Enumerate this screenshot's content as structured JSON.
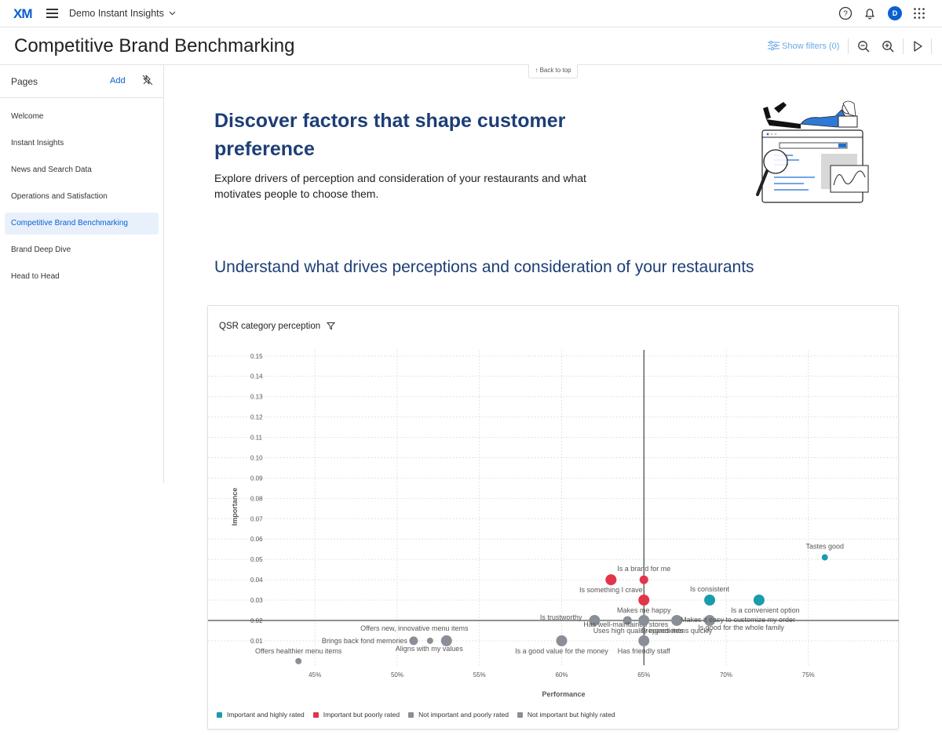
{
  "topbar": {
    "logo": "XM",
    "project": "Demo Instant Insights",
    "avatar_initial": "D"
  },
  "titlebar": {
    "title": "Competitive Brand Benchmarking",
    "show_filters": "Show filters (0)"
  },
  "sidebar": {
    "heading": "Pages",
    "add_label": "Add",
    "items": [
      {
        "label": "Welcome"
      },
      {
        "label": "Instant Insights"
      },
      {
        "label": "News and Search Data"
      },
      {
        "label": "Operations and Satisfaction"
      },
      {
        "label": "Competitive Brand Benchmarking"
      },
      {
        "label": "Brand Deep Dive"
      },
      {
        "label": "Head to Head"
      }
    ]
  },
  "back_to_top": "↑ Back to top",
  "hero": {
    "title": "Discover factors that shape customer preference",
    "description": "Explore drivers of perception and consideration of your restaurants and what motivates people to choose them."
  },
  "section": {
    "title": "Understand what drives perceptions and consideration of your restaurants"
  },
  "chart_card": {
    "title": "QSR category perception"
  },
  "colors": {
    "accent": "#0b5fd1",
    "title_blue": "#1d3e76",
    "important_high": "#1a9bae",
    "important_poor": "#e2354b",
    "not_important": "#8a8f97"
  },
  "chart_data": {
    "type": "scatter",
    "title": "QSR category perception",
    "xlabel": "Performance",
    "ylabel": "Importance",
    "xlim": [
      38.5,
      80.5
    ],
    "ylim": [
      -0.002,
      0.153
    ],
    "x_ticks": [
      "45%",
      "50%",
      "55%",
      "60%",
      "65%",
      "70%",
      "75%"
    ],
    "x_tick_values": [
      45,
      50,
      55,
      60,
      65,
      70,
      75
    ],
    "y_ticks": [
      "0.01",
      "0.02",
      "0.03",
      "0.04",
      "0.05",
      "0.06",
      "0.07",
      "0.08",
      "0.09",
      "0.10",
      "0.11",
      "0.12",
      "0.13",
      "0.14",
      "0.15"
    ],
    "y_tick_values": [
      0.01,
      0.02,
      0.03,
      0.04,
      0.05,
      0.06,
      0.07,
      0.08,
      0.09,
      0.1,
      0.11,
      0.12,
      0.13,
      0.14,
      0.15
    ],
    "reference_lines": {
      "x": 65,
      "y": 0.02
    },
    "legend": [
      {
        "label": "Important and highly rated",
        "color": "#1a9bae"
      },
      {
        "label": "Important but poorly rated",
        "color": "#e2354b"
      },
      {
        "label": "Not important and poorly rated",
        "color": "#8a8f97"
      },
      {
        "label": "Not important but highly rated",
        "color": "#8a8f97"
      }
    ],
    "points": [
      {
        "label": "Tastes good",
        "x": 76,
        "y": 0.051,
        "size": 4,
        "category": "important_high"
      },
      {
        "label": "Is consistent",
        "x": 69,
        "y": 0.03,
        "size": 7,
        "category": "important_high"
      },
      {
        "label": "Is a convenient option",
        "x": 72,
        "y": 0.03,
        "size": 7,
        "category": "important_high"
      },
      {
        "label": "Is a brand for me",
        "x": 65,
        "y": 0.04,
        "size": 5.5,
        "category": "important_poor"
      },
      {
        "label": "Is something I crave",
        "x": 63,
        "y": 0.04,
        "size": 7,
        "category": "important_poor"
      },
      {
        "label": "Makes me happy",
        "x": 65,
        "y": 0.03,
        "size": 7,
        "category": "important_poor"
      },
      {
        "label": "Is trustworthy",
        "x": 62,
        "y": 0.02,
        "size": 7,
        "category": "not_important_poor"
      },
      {
        "label": "Has well-maintained stores",
        "x": 64,
        "y": 0.02,
        "size": 5.5,
        "category": "not_important_poor"
      },
      {
        "label": "Uses high quality ingredients",
        "x": 65,
        "y": 0.02,
        "size": 7,
        "category": "not_important_high"
      },
      {
        "label": "Prepares items quickly",
        "x": 67,
        "y": 0.02,
        "size": 7,
        "category": "not_important_high"
      },
      {
        "label": "Makes it easy to customize my order",
        "x": 69,
        "y": 0.02,
        "size": 7,
        "category": "not_important_high"
      },
      {
        "label": "Is good for the whole family",
        "x": 69,
        "y": 0.02,
        "size": 0,
        "category": "not_important_high"
      },
      {
        "label": "Offers new, innovative menu items",
        "x": 52,
        "y": 0.01,
        "size": 4,
        "category": "not_important_poor"
      },
      {
        "label": "Brings back fond memories",
        "x": 51,
        "y": 0.01,
        "size": 5.5,
        "category": "not_important_poor"
      },
      {
        "label": "Aligns with my values",
        "x": 53,
        "y": 0.01,
        "size": 7,
        "category": "not_important_poor"
      },
      {
        "label": "Is a good value for the money",
        "x": 60,
        "y": 0.01,
        "size": 7,
        "category": "not_important_poor"
      },
      {
        "label": "Has friendly staff",
        "x": 65,
        "y": 0.01,
        "size": 7,
        "category": "not_important_high"
      },
      {
        "label": "Offers healthier menu items",
        "x": 44,
        "y": 0.0,
        "size": 4,
        "category": "not_important_poor"
      }
    ]
  }
}
